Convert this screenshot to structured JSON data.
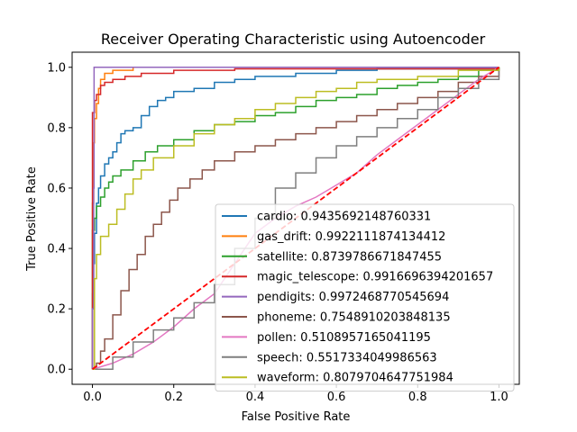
{
  "chart_data": {
    "type": "line",
    "title": "Receiver Operating Characteristic using Autoencoder",
    "xlabel": "False Positive Rate",
    "ylabel": "True Positive Rate",
    "xlim": [
      -0.05,
      1.05
    ],
    "ylim": [
      -0.05,
      1.05
    ],
    "xticks": [
      "0.0",
      "0.2",
      "0.4",
      "0.6",
      "0.8",
      "1.0"
    ],
    "yticks": [
      "0.0",
      "0.2",
      "0.4",
      "0.6",
      "0.8",
      "1.0"
    ],
    "grid": false,
    "legend_position": "lower-right",
    "series": [
      {
        "name": "cardio: 0.9435692148760331",
        "color": "#1f77b4",
        "step": true,
        "points": [
          [
            0,
            0
          ],
          [
            0,
            0.25
          ],
          [
            0.003,
            0.35
          ],
          [
            0.005,
            0.45
          ],
          [
            0.01,
            0.55
          ],
          [
            0.015,
            0.6
          ],
          [
            0.02,
            0.64
          ],
          [
            0.03,
            0.68
          ],
          [
            0.04,
            0.7
          ],
          [
            0.05,
            0.72
          ],
          [
            0.06,
            0.75
          ],
          [
            0.07,
            0.78
          ],
          [
            0.08,
            0.79
          ],
          [
            0.1,
            0.8
          ],
          [
            0.12,
            0.84
          ],
          [
            0.14,
            0.87
          ],
          [
            0.16,
            0.89
          ],
          [
            0.18,
            0.9
          ],
          [
            0.2,
            0.92
          ],
          [
            0.25,
            0.93
          ],
          [
            0.3,
            0.95
          ],
          [
            0.35,
            0.96
          ],
          [
            0.4,
            0.97
          ],
          [
            0.5,
            0.98
          ],
          [
            0.6,
            0.99
          ],
          [
            0.7,
            0.995
          ],
          [
            1.0,
            1.0
          ]
        ]
      },
      {
        "name": "gas_drift: 0.9922111874134412",
        "color": "#ff7f0e",
        "step": true,
        "points": [
          [
            0,
            0
          ],
          [
            0,
            0.55
          ],
          [
            0.003,
            0.75
          ],
          [
            0.005,
            0.83
          ],
          [
            0.01,
            0.88
          ],
          [
            0.015,
            0.93
          ],
          [
            0.02,
            0.96
          ],
          [
            0.03,
            0.98
          ],
          [
            0.05,
            0.99
          ],
          [
            0.1,
            1.0
          ],
          [
            1.0,
            1.0
          ]
        ]
      },
      {
        "name": "satellite: 0.8739786671847455",
        "color": "#2ca02c",
        "step": true,
        "points": [
          [
            0,
            0
          ],
          [
            0,
            0.46
          ],
          [
            0.005,
            0.5
          ],
          [
            0.01,
            0.54
          ],
          [
            0.02,
            0.57
          ],
          [
            0.03,
            0.6
          ],
          [
            0.04,
            0.62
          ],
          [
            0.05,
            0.64
          ],
          [
            0.07,
            0.66
          ],
          [
            0.1,
            0.69
          ],
          [
            0.13,
            0.72
          ],
          [
            0.16,
            0.74
          ],
          [
            0.2,
            0.76
          ],
          [
            0.25,
            0.79
          ],
          [
            0.3,
            0.81
          ],
          [
            0.35,
            0.82
          ],
          [
            0.4,
            0.84
          ],
          [
            0.45,
            0.85
          ],
          [
            0.5,
            0.87
          ],
          [
            0.55,
            0.89
          ],
          [
            0.6,
            0.9
          ],
          [
            0.65,
            0.91
          ],
          [
            0.7,
            0.93
          ],
          [
            0.75,
            0.94
          ],
          [
            0.8,
            0.95
          ],
          [
            0.85,
            0.96
          ],
          [
            0.9,
            0.97
          ],
          [
            0.95,
            0.99
          ],
          [
            1.0,
            1.0
          ]
        ]
      },
      {
        "name": "magic_telescope: 0.9916696394201657",
        "color": "#d62728",
        "step": true,
        "points": [
          [
            0,
            0
          ],
          [
            0,
            0.85
          ],
          [
            0.005,
            0.89
          ],
          [
            0.01,
            0.91
          ],
          [
            0.02,
            0.94
          ],
          [
            0.03,
            0.95
          ],
          [
            0.05,
            0.96
          ],
          [
            0.08,
            0.97
          ],
          [
            0.12,
            0.98
          ],
          [
            0.2,
            0.99
          ],
          [
            0.35,
            0.995
          ],
          [
            1.0,
            1.0
          ]
        ]
      },
      {
        "name": "pendigits: 0.9972468770545694",
        "color": "#9467bd",
        "step": true,
        "points": [
          [
            0,
            0
          ],
          [
            0,
            0.2
          ],
          [
            0.003,
            0.6
          ],
          [
            0.004,
            1.0
          ],
          [
            1.0,
            1.0
          ]
        ]
      },
      {
        "name": "phoneme: 0.7548910203848135",
        "color": "#8c564b",
        "step": true,
        "points": [
          [
            0,
            0
          ],
          [
            0.01,
            0.02
          ],
          [
            0.02,
            0.06
          ],
          [
            0.03,
            0.1
          ],
          [
            0.05,
            0.18
          ],
          [
            0.07,
            0.26
          ],
          [
            0.09,
            0.33
          ],
          [
            0.11,
            0.38
          ],
          [
            0.13,
            0.44
          ],
          [
            0.15,
            0.48
          ],
          [
            0.17,
            0.52
          ],
          [
            0.19,
            0.56
          ],
          [
            0.21,
            0.6
          ],
          [
            0.24,
            0.63
          ],
          [
            0.27,
            0.66
          ],
          [
            0.3,
            0.69
          ],
          [
            0.35,
            0.72
          ],
          [
            0.4,
            0.74
          ],
          [
            0.45,
            0.76
          ],
          [
            0.5,
            0.78
          ],
          [
            0.55,
            0.8
          ],
          [
            0.6,
            0.82
          ],
          [
            0.65,
            0.84
          ],
          [
            0.7,
            0.86
          ],
          [
            0.75,
            0.88
          ],
          [
            0.8,
            0.9
          ],
          [
            0.85,
            0.92
          ],
          [
            0.9,
            0.95
          ],
          [
            0.95,
            0.97
          ],
          [
            1.0,
            1.0
          ]
        ]
      },
      {
        "name": "pollen: 0.5108957165041195",
        "color": "#e377c2",
        "step": false,
        "points": [
          [
            0,
            0
          ],
          [
            0.05,
            0.02
          ],
          [
            0.1,
            0.05
          ],
          [
            0.15,
            0.09
          ],
          [
            0.2,
            0.14
          ],
          [
            0.25,
            0.2
          ],
          [
            0.3,
            0.25
          ],
          [
            0.35,
            0.35
          ],
          [
            0.4,
            0.45
          ],
          [
            0.45,
            0.5
          ],
          [
            0.5,
            0.54
          ],
          [
            0.55,
            0.57
          ],
          [
            0.6,
            0.61
          ],
          [
            0.65,
            0.65
          ],
          [
            0.7,
            0.71
          ],
          [
            0.75,
            0.76
          ],
          [
            0.8,
            0.81
          ],
          [
            0.85,
            0.86
          ],
          [
            0.9,
            0.91
          ],
          [
            0.95,
            0.96
          ],
          [
            1.0,
            1.0
          ]
        ]
      },
      {
        "name": "speech: 0.5517334049986563",
        "color": "#7f7f7f",
        "step": true,
        "points": [
          [
            0,
            0
          ],
          [
            0.05,
            0.04
          ],
          [
            0.1,
            0.09
          ],
          [
            0.15,
            0.13
          ],
          [
            0.2,
            0.17
          ],
          [
            0.25,
            0.22
          ],
          [
            0.3,
            0.28
          ],
          [
            0.35,
            0.4
          ],
          [
            0.4,
            0.5
          ],
          [
            0.45,
            0.6
          ],
          [
            0.5,
            0.65
          ],
          [
            0.55,
            0.7
          ],
          [
            0.6,
            0.74
          ],
          [
            0.65,
            0.77
          ],
          [
            0.7,
            0.8
          ],
          [
            0.75,
            0.83
          ],
          [
            0.8,
            0.86
          ],
          [
            0.85,
            0.9
          ],
          [
            0.9,
            0.93
          ],
          [
            0.95,
            0.96
          ],
          [
            1.0,
            1.0
          ]
        ]
      },
      {
        "name": "waveform: 0.8079704647751984",
        "color": "#bcbd22",
        "step": true,
        "points": [
          [
            0,
            0
          ],
          [
            0.005,
            0.3
          ],
          [
            0.01,
            0.38
          ],
          [
            0.02,
            0.44
          ],
          [
            0.04,
            0.48
          ],
          [
            0.06,
            0.53
          ],
          [
            0.08,
            0.58
          ],
          [
            0.1,
            0.63
          ],
          [
            0.12,
            0.66
          ],
          [
            0.15,
            0.7
          ],
          [
            0.2,
            0.74
          ],
          [
            0.25,
            0.78
          ],
          [
            0.3,
            0.81
          ],
          [
            0.35,
            0.83
          ],
          [
            0.4,
            0.86
          ],
          [
            0.45,
            0.88
          ],
          [
            0.5,
            0.9
          ],
          [
            0.55,
            0.92
          ],
          [
            0.6,
            0.93
          ],
          [
            0.65,
            0.95
          ],
          [
            0.7,
            0.96
          ],
          [
            0.8,
            0.97
          ],
          [
            0.9,
            0.99
          ],
          [
            1.0,
            1.0
          ]
        ]
      }
    ],
    "reference_line": {
      "color": "#ff0000",
      "style": "dashed",
      "points": [
        [
          0,
          0
        ],
        [
          1,
          1
        ]
      ]
    }
  }
}
